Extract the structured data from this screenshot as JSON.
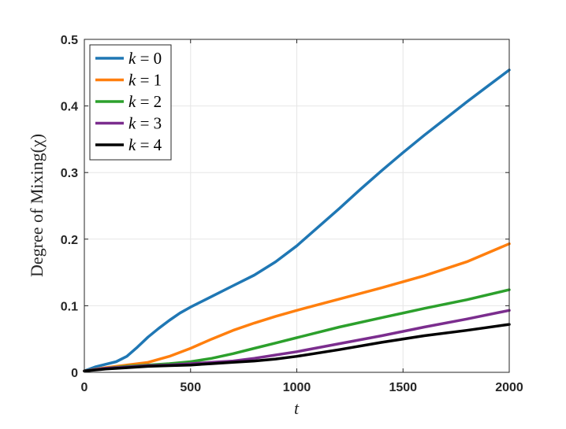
{
  "chart_data": {
    "type": "line",
    "title": "",
    "xlabel": "t",
    "ylabel": "Degree of Mixing(χ)",
    "xlim": [
      0,
      2000
    ],
    "ylim": [
      0,
      0.5
    ],
    "xticks": [
      0,
      500,
      1000,
      1500,
      2000
    ],
    "yticks": [
      0,
      0.1,
      0.2,
      0.3,
      0.4,
      0.5
    ],
    "grid": true,
    "legend_position": "top-left",
    "series": [
      {
        "name": "k = 0",
        "var": "k",
        "val": "0",
        "color": "#1f77b4",
        "x": [
          0,
          50,
          100,
          150,
          200,
          250,
          300,
          350,
          400,
          450,
          500,
          600,
          700,
          800,
          900,
          1000,
          1100,
          1200,
          1300,
          1400,
          1500,
          1600,
          1700,
          1800,
          1900,
          2000
        ],
        "y": [
          0.002,
          0.008,
          0.012,
          0.016,
          0.024,
          0.038,
          0.053,
          0.066,
          0.078,
          0.089,
          0.098,
          0.114,
          0.13,
          0.146,
          0.166,
          0.19,
          0.218,
          0.246,
          0.275,
          0.303,
          0.33,
          0.356,
          0.381,
          0.406,
          0.43,
          0.454
        ]
      },
      {
        "name": "k = 1",
        "var": "k",
        "val": "1",
        "color": "#ff7f0e",
        "x": [
          0,
          100,
          200,
          300,
          400,
          500,
          600,
          700,
          800,
          900,
          1000,
          1200,
          1400,
          1600,
          1800,
          2000
        ],
        "y": [
          0.002,
          0.007,
          0.011,
          0.015,
          0.024,
          0.036,
          0.05,
          0.063,
          0.074,
          0.084,
          0.093,
          0.11,
          0.127,
          0.145,
          0.166,
          0.193
        ]
      },
      {
        "name": "k = 2",
        "var": "k",
        "val": "2",
        "color": "#2ca02c",
        "x": [
          0,
          100,
          200,
          300,
          400,
          500,
          600,
          700,
          800,
          900,
          1000,
          1200,
          1400,
          1600,
          1800,
          2000
        ],
        "y": [
          0.002,
          0.006,
          0.009,
          0.011,
          0.013,
          0.016,
          0.021,
          0.028,
          0.036,
          0.044,
          0.052,
          0.068,
          0.082,
          0.096,
          0.109,
          0.124
        ]
      },
      {
        "name": "k = 3",
        "var": "k",
        "val": "3",
        "color": "#7b2d8e",
        "x": [
          0,
          100,
          200,
          300,
          400,
          500,
          600,
          700,
          800,
          900,
          1000,
          1200,
          1400,
          1600,
          1800,
          2000
        ],
        "y": [
          0.002,
          0.006,
          0.008,
          0.01,
          0.011,
          0.013,
          0.015,
          0.017,
          0.021,
          0.026,
          0.031,
          0.043,
          0.055,
          0.068,
          0.08,
          0.093
        ]
      },
      {
        "name": "k = 4",
        "var": "k",
        "val": "4",
        "color": "#000000",
        "x": [
          0,
          100,
          200,
          300,
          400,
          500,
          600,
          700,
          800,
          900,
          1000,
          1200,
          1400,
          1600,
          1800,
          2000
        ],
        "y": [
          0.002,
          0.005,
          0.007,
          0.009,
          0.01,
          0.011,
          0.013,
          0.015,
          0.017,
          0.02,
          0.024,
          0.034,
          0.045,
          0.055,
          0.063,
          0.072
        ]
      }
    ]
  }
}
